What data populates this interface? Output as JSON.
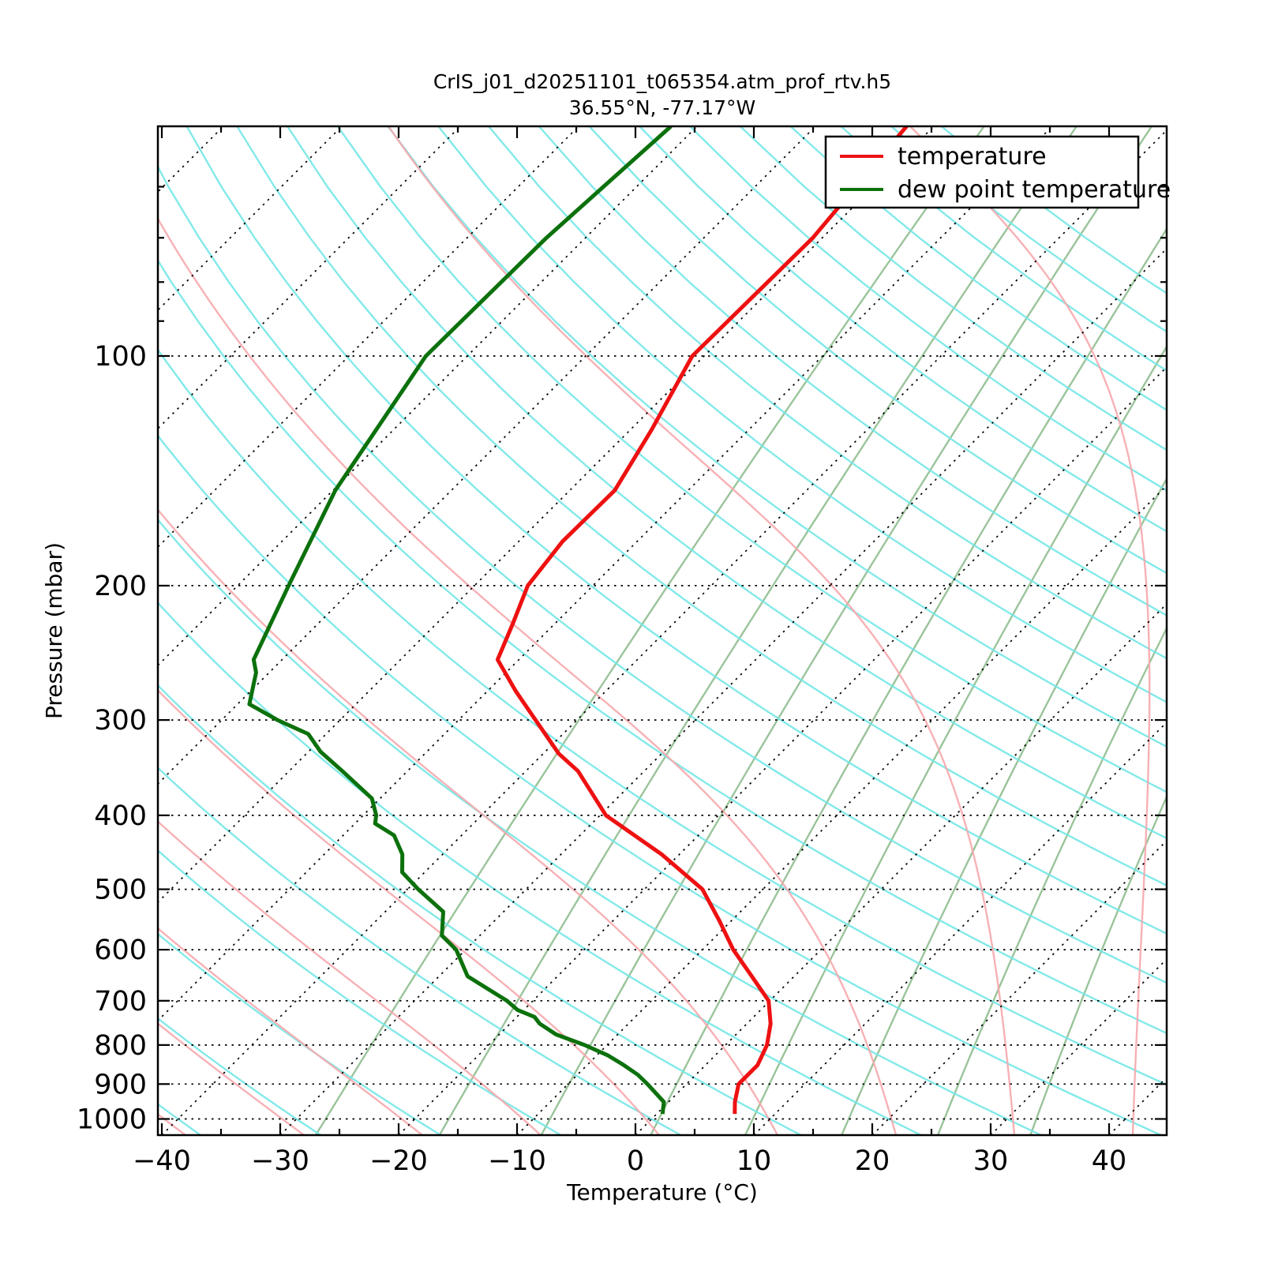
{
  "header": {
    "title": "CrIS_j01_d20251101_t065354.atm_prof_rtv.h5",
    "subtitle": "36.55°N, -77.17°W"
  },
  "legend": {
    "items": [
      {
        "label": "temperature",
        "color": "#ee1111"
      },
      {
        "label": "dew point temperature",
        "color": "#0c710c"
      }
    ]
  },
  "chart_data": {
    "type": "line",
    "variant": "skew-t-log-p",
    "title": "CrIS_j01_d20251101_t065354.atm_prof_rtv.h5",
    "subtitle": "36.55°N, -77.17°W",
    "xlabel": "Temperature (°C)",
    "ylabel": "Pressure (mbar)",
    "xlim": [
      -40,
      45
    ],
    "ylim": [
      1050,
      50
    ],
    "y_scale": "log",
    "skew_degrees": 45,
    "grid": "dotted isotherms and isobars",
    "legend_position": "upper right",
    "x_ticks": [
      -40,
      -30,
      -20,
      -10,
      0,
      10,
      20,
      30,
      40
    ],
    "x_minor_step": 5,
    "y_ticks": [
      100,
      200,
      300,
      400,
      500,
      600,
      700,
      800,
      900,
      1000
    ],
    "y_minor_ticks": [
      60,
      70,
      80,
      90
    ],
    "series": [
      {
        "name": "temperature",
        "color": "#ee1111",
        "units": {
          "x": "°C",
          "y": "mbar"
        },
        "points_p_T": [
          [
            985,
            6.6
          ],
          [
            950,
            5.6
          ],
          [
            900,
            4.4
          ],
          [
            850,
            4.4
          ],
          [
            800,
            3.5
          ],
          [
            750,
            2.0
          ],
          [
            700,
            -0.1
          ],
          [
            650,
            -3.6
          ],
          [
            600,
            -7.4
          ],
          [
            550,
            -11.0
          ],
          [
            500,
            -15.1
          ],
          [
            450,
            -21.5
          ],
          [
            400,
            -29.5
          ],
          [
            350,
            -35.6
          ],
          [
            332,
            -38.7
          ],
          [
            300,
            -43.5
          ],
          [
            275,
            -47.6
          ],
          [
            250,
            -51.8
          ],
          [
            225,
            -53.5
          ],
          [
            200,
            -55.5
          ],
          [
            175,
            -56.3
          ],
          [
            150,
            -56.2
          ],
          [
            125,
            -58.2
          ],
          [
            100,
            -61.0
          ],
          [
            70,
            -60.8
          ],
          [
            50,
            -62.3
          ]
        ]
      },
      {
        "name": "dew point temperature",
        "color": "#0c710c",
        "units": {
          "x": "°C",
          "y": "mbar"
        },
        "points_p_T": [
          [
            985,
            0.5
          ],
          [
            950,
            -0.4
          ],
          [
            900,
            -3.3
          ],
          [
            875,
            -4.9
          ],
          [
            850,
            -6.9
          ],
          [
            825,
            -9.1
          ],
          [
            800,
            -11.9
          ],
          [
            775,
            -15.2
          ],
          [
            750,
            -17.5
          ],
          [
            735,
            -18.5
          ],
          [
            720,
            -20.5
          ],
          [
            700,
            -22.2
          ],
          [
            650,
            -27.6
          ],
          [
            600,
            -30.8
          ],
          [
            575,
            -33.2
          ],
          [
            535,
            -35.1
          ],
          [
            500,
            -39.1
          ],
          [
            475,
            -41.9
          ],
          [
            450,
            -43.4
          ],
          [
            425,
            -45.7
          ],
          [
            410,
            -48.3
          ],
          [
            400,
            -48.9
          ],
          [
            380,
            -50.7
          ],
          [
            350,
            -55.5
          ],
          [
            330,
            -59.0
          ],
          [
            313,
            -61.5
          ],
          [
            300,
            -65.3
          ],
          [
            286,
            -69.0
          ],
          [
            260,
            -71.1
          ],
          [
            250,
            -72.4
          ],
          [
            200,
            -75.7
          ],
          [
            150,
            -79.8
          ],
          [
            100,
            -83.5
          ],
          [
            70,
            -83.3
          ],
          [
            50,
            -82.2
          ]
        ]
      }
    ],
    "background": {
      "isobars": {
        "values": [
          100,
          200,
          300,
          400,
          500,
          600,
          700,
          800,
          900,
          1000
        ],
        "color": "#000000",
        "style": "dotted"
      },
      "isotherms": {
        "from": -120,
        "to": 40,
        "step": 10,
        "color": "#000000",
        "style": "dotted"
      },
      "dry_adiabats": {
        "theta_from": -40,
        "theta_to": 230,
        "step": 10,
        "color": "#76e7e7"
      },
      "moist_adiabats": {
        "start_T_from": -38,
        "start_T_to": 42,
        "step": 10,
        "color": "#f6a9ad"
      },
      "mixing_ratio_lines": {
        "values_g_per_kg": [
          0.4,
          1,
          2,
          4,
          7,
          12,
          20,
          32
        ],
        "color": "#8fbe8f"
      }
    }
  }
}
